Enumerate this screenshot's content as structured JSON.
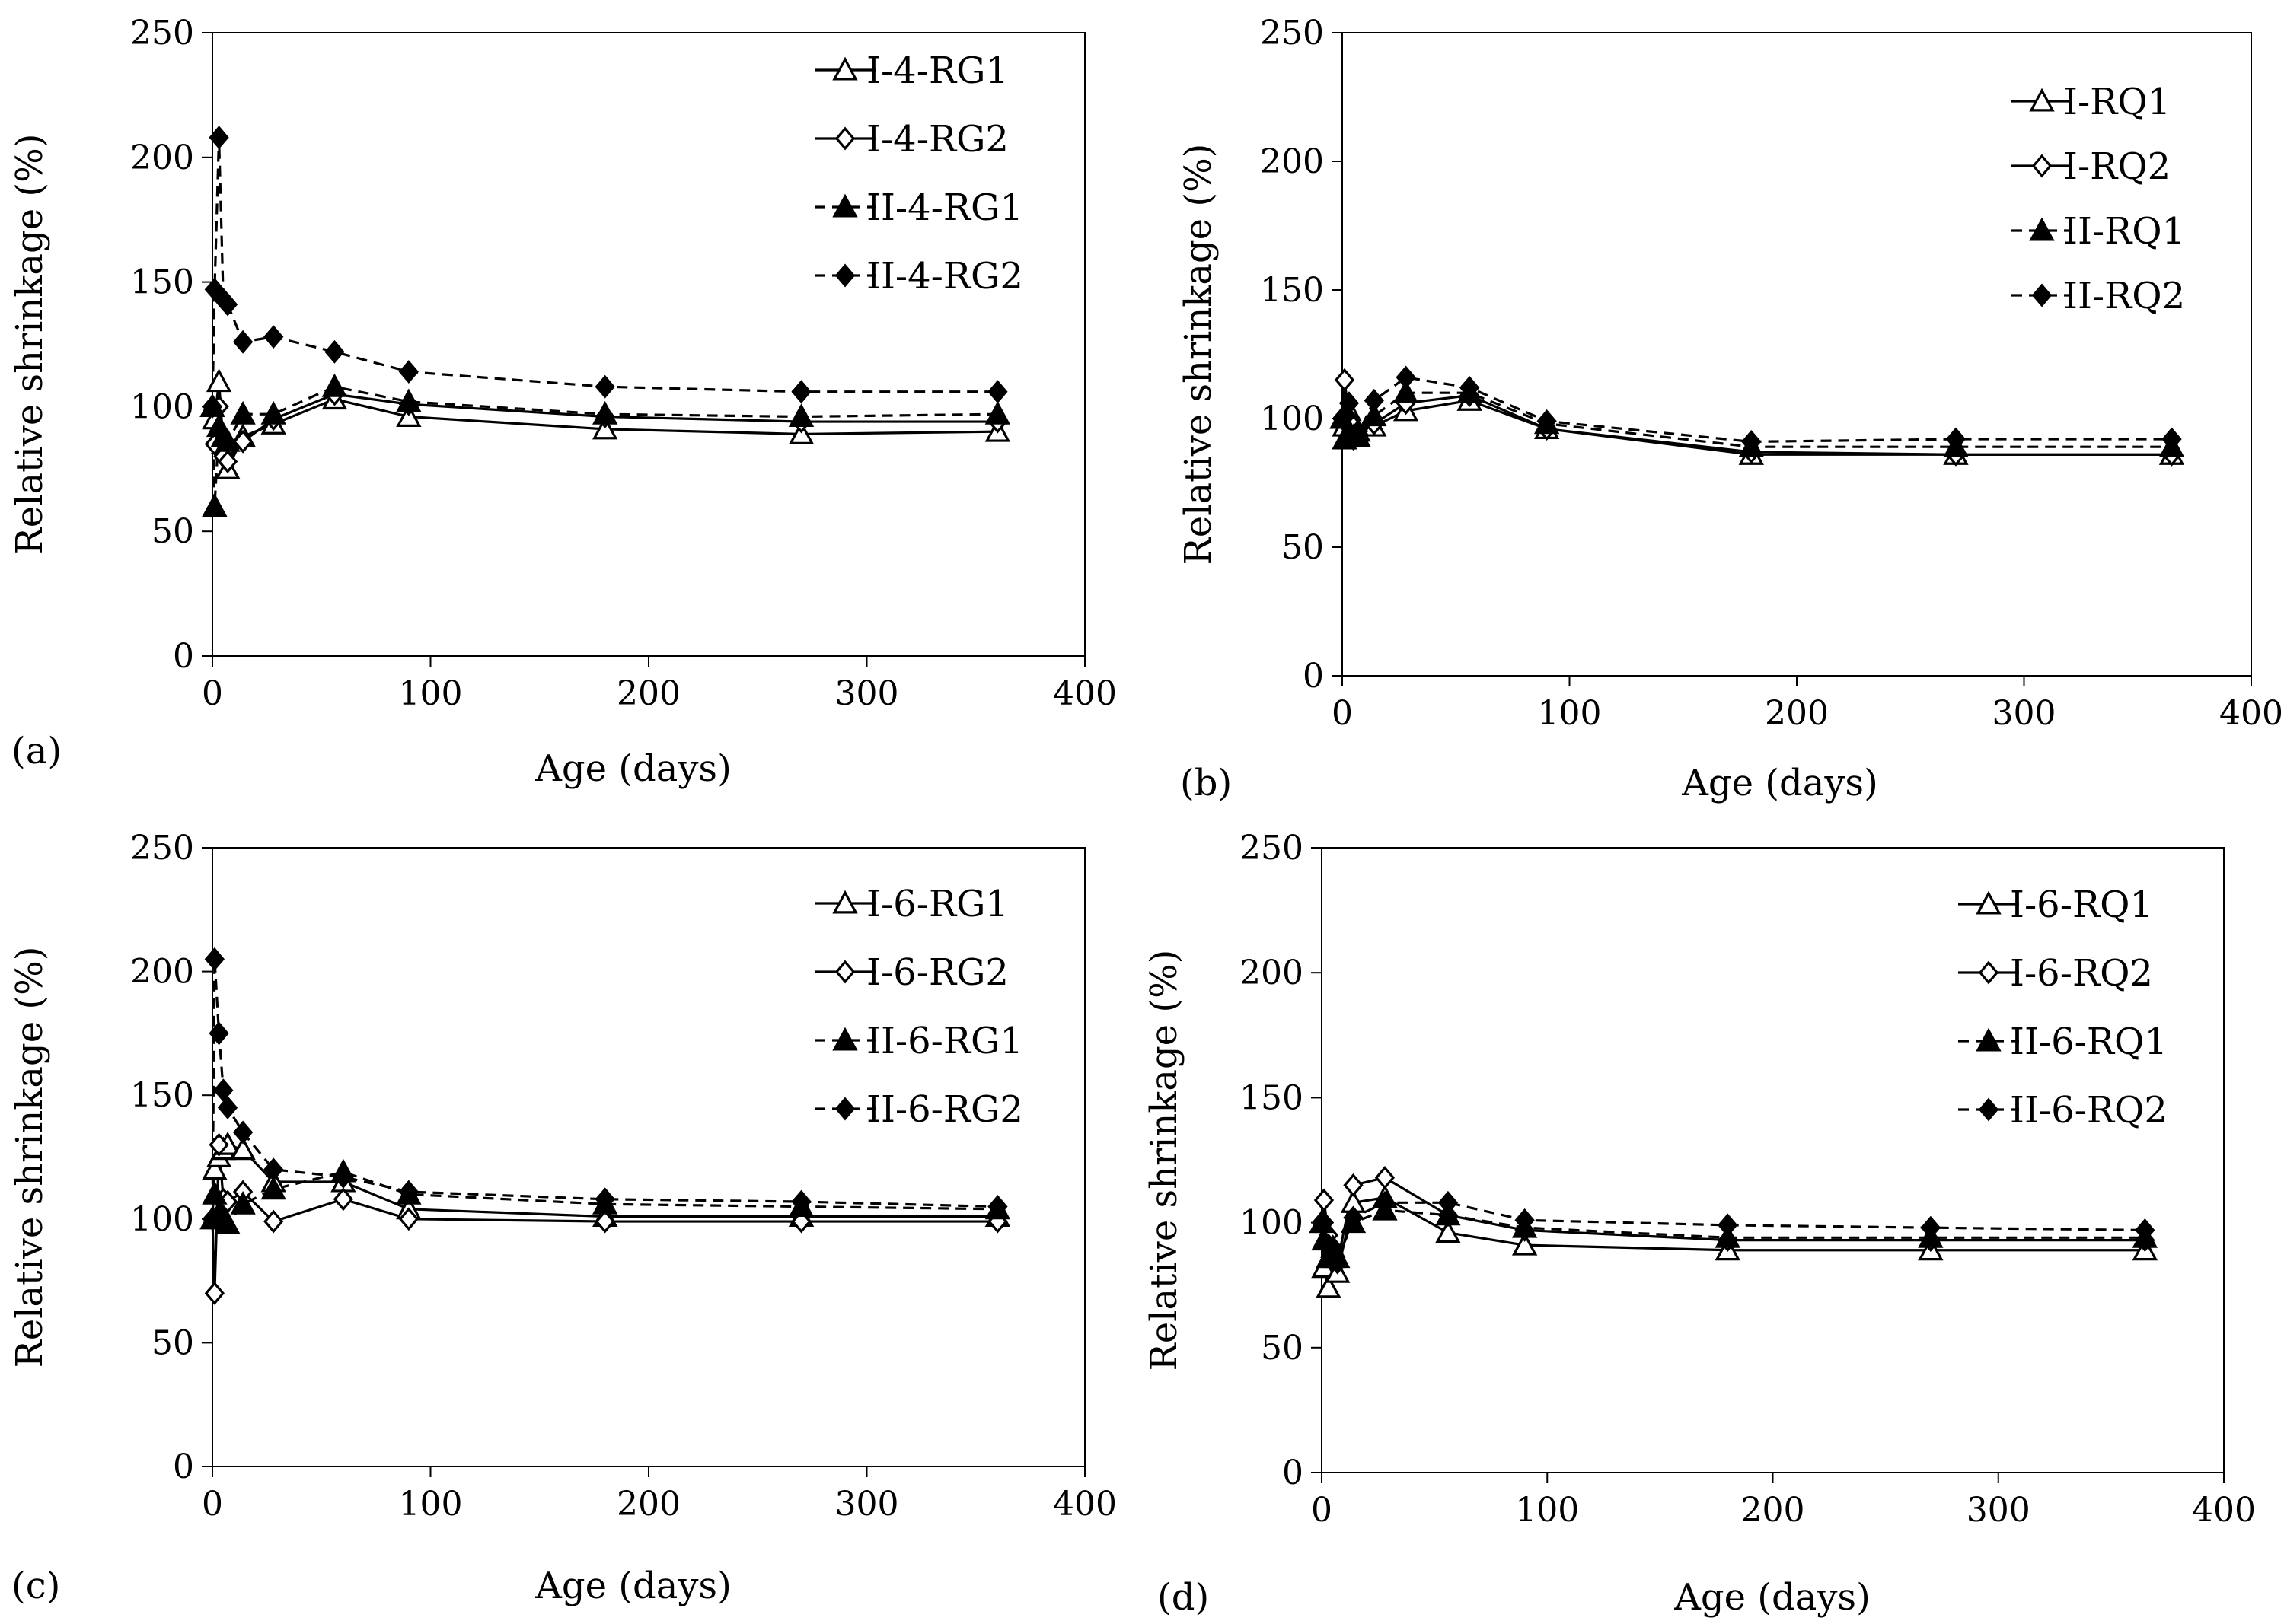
{
  "figure": {
    "panel_labels": [
      "(a)",
      "(b)",
      "(c)",
      "(d)"
    ]
  },
  "chart_data": [
    {
      "id": "a",
      "type": "line",
      "title": "",
      "xlabel": "Age (days)",
      "ylabel": "Relative shrinkage (%)",
      "xlim": [
        0,
        400
      ],
      "ylim": [
        0,
        250
      ],
      "xticks": [
        0,
        100,
        200,
        300,
        400
      ],
      "yticks": [
        0,
        50,
        100,
        150,
        200,
        250
      ],
      "grid": false,
      "legend_position": "top-right",
      "series": [
        {
          "name": "I-4-RG1",
          "marker": "triangle-open",
          "line": "solid",
          "x": [
            0,
            1,
            3,
            5,
            7,
            14,
            28,
            56,
            90,
            180,
            270,
            360
          ],
          "y": [
            100,
            95,
            110,
            85,
            75,
            88,
            93,
            103,
            96,
            91,
            89,
            90
          ]
        },
        {
          "name": "I-4-RG2",
          "marker": "diamond-open",
          "line": "solid",
          "x": [
            0,
            1,
            3,
            5,
            7,
            14,
            28,
            56,
            90,
            180,
            270,
            360
          ],
          "y": [
            100,
            85,
            100,
            80,
            78,
            86,
            95,
            105,
            101,
            96,
            94,
            94
          ]
        },
        {
          "name": "II-4-RG1",
          "marker": "triangle-filled",
          "line": "dashed",
          "x": [
            0,
            1,
            3,
            5,
            7,
            14,
            28,
            56,
            90,
            180,
            270,
            360
          ],
          "y": [
            100,
            60,
            92,
            88,
            86,
            97,
            97,
            108,
            102,
            97,
            96,
            97
          ]
        },
        {
          "name": "II-4-RG2",
          "marker": "diamond-filled",
          "line": "dashed",
          "x": [
            0,
            1,
            3,
            5,
            7,
            14,
            28,
            56,
            90,
            180,
            270,
            360
          ],
          "y": [
            100,
            147,
            208,
            143,
            141,
            126,
            128,
            122,
            114,
            108,
            106,
            106
          ]
        }
      ]
    },
    {
      "id": "b",
      "type": "line",
      "title": "",
      "xlabel": "Age (days)",
      "ylabel": "Relative shrinkage (%)",
      "xlim": [
        0,
        400
      ],
      "ylim": [
        0,
        250
      ],
      "xticks": [
        0,
        100,
        200,
        300,
        400
      ],
      "yticks": [
        0,
        50,
        100,
        150,
        200,
        250
      ],
      "grid": false,
      "legend_position": "top-right",
      "series": [
        {
          "name": "I-RQ1",
          "marker": "triangle-open",
          "line": "solid",
          "x": [
            0,
            1,
            3,
            5,
            7,
            14,
            28,
            56,
            90,
            180,
            270,
            365
          ],
          "y": [
            100,
            97,
            103,
            95,
            95,
            97,
            103,
            107,
            96,
            86,
            86,
            86
          ]
        },
        {
          "name": "I-RQ2",
          "marker": "diamond-open",
          "line": "solid",
          "x": [
            0,
            1,
            3,
            5,
            7,
            14,
            28,
            56,
            90,
            180,
            270,
            365
          ],
          "y": [
            100,
            115,
            100,
            97,
            95,
            98,
            106,
            109,
            96,
            87,
            86,
            86
          ]
        },
        {
          "name": "II-RQ1",
          "marker": "triangle-filled",
          "line": "dashed",
          "x": [
            0,
            1,
            3,
            5,
            7,
            14,
            28,
            56,
            90,
            180,
            270,
            365
          ],
          "y": [
            100,
            92,
            95,
            93,
            93,
            101,
            110,
            110,
            98,
            89,
            89,
            89
          ]
        },
        {
          "name": "II-RQ2",
          "marker": "diamond-filled",
          "line": "dashed",
          "x": [
            0,
            1,
            3,
            5,
            7,
            14,
            28,
            56,
            90,
            180,
            270,
            365
          ],
          "y": [
            100,
            101,
            106,
            92,
            94,
            107,
            116,
            112,
            99,
            91,
            92,
            92
          ]
        }
      ]
    },
    {
      "id": "c",
      "type": "line",
      "title": "",
      "xlabel": "Age (days)",
      "ylabel": "Relative shrinkage (%)",
      "xlim": [
        0,
        400
      ],
      "ylim": [
        0,
        250
      ],
      "xticks": [
        0,
        100,
        200,
        300,
        400
      ],
      "yticks": [
        0,
        50,
        100,
        150,
        200,
        250
      ],
      "grid": false,
      "legend_position": "top-right",
      "series": [
        {
          "name": "I-6-RG1",
          "marker": "triangle-open",
          "line": "solid",
          "x": [
            0,
            1,
            3,
            5,
            7,
            14,
            28,
            60,
            90,
            180,
            270,
            360
          ],
          "y": [
            100,
            120,
            125,
            128,
            130,
            128,
            115,
            115,
            104,
            101,
            101,
            101
          ]
        },
        {
          "name": "I-6-RG2",
          "marker": "diamond-open",
          "line": "solid",
          "x": [
            0,
            1,
            3,
            5,
            7,
            14,
            28,
            60,
            90,
            180,
            270,
            360
          ],
          "y": [
            100,
            70,
            130,
            108,
            107,
            111,
            99,
            108,
            100,
            99,
            99,
            99
          ]
        },
        {
          "name": "II-6-RG1",
          "marker": "triangle-filled",
          "line": "dashed",
          "x": [
            0,
            1,
            3,
            5,
            7,
            14,
            28,
            60,
            90,
            180,
            270,
            360
          ],
          "y": [
            100,
            110,
            102,
            100,
            98,
            106,
            112,
            119,
            110,
            106,
            105,
            104
          ]
        },
        {
          "name": "II-6-RG2",
          "marker": "diamond-filled",
          "line": "dashed",
          "x": [
            0,
            1,
            3,
            5,
            7,
            14,
            28,
            60,
            90,
            180,
            270,
            360
          ],
          "y": [
            100,
            205,
            175,
            152,
            145,
            135,
            120,
            117,
            111,
            108,
            107,
            105
          ]
        }
      ]
    },
    {
      "id": "d",
      "type": "line",
      "title": "",
      "xlabel": "Age (days)",
      "ylabel": "Relative shrinkage (%)",
      "xlim": [
        0,
        400
      ],
      "ylim": [
        0,
        250
      ],
      "xticks": [
        0,
        100,
        200,
        300,
        400
      ],
      "yticks": [
        0,
        50,
        100,
        150,
        200,
        250
      ],
      "grid": false,
      "legend_position": "top-right",
      "series": [
        {
          "name": "I-6-RQ1",
          "marker": "triangle-open",
          "line": "solid",
          "x": [
            0,
            1,
            3,
            5,
            7,
            14,
            28,
            56,
            90,
            180,
            270,
            365
          ],
          "y": [
            100,
            82,
            74,
            86,
            80,
            108,
            110,
            96,
            91,
            89,
            89,
            89
          ]
        },
        {
          "name": "I-6-RQ2",
          "marker": "diamond-open",
          "line": "solid",
          "x": [
            0,
            1,
            3,
            5,
            7,
            14,
            28,
            56,
            90,
            180,
            270,
            365
          ],
          "y": [
            100,
            109,
            95,
            90,
            84,
            115,
            118,
            103,
            97,
            93,
            93,
            93
          ]
        },
        {
          "name": "II-6-RQ1",
          "marker": "triangle-filled",
          "line": "dashed",
          "x": [
            0,
            1,
            3,
            5,
            7,
            14,
            28,
            56,
            90,
            180,
            270,
            365
          ],
          "y": [
            100,
            93,
            86,
            90,
            86,
            100,
            105,
            103,
            98,
            94,
            94,
            94
          ]
        },
        {
          "name": "II-6-RQ2",
          "marker": "diamond-filled",
          "line": "dashed",
          "x": [
            0,
            1,
            3,
            5,
            7,
            14,
            28,
            56,
            90,
            180,
            270,
            365
          ],
          "y": [
            100,
            100,
            91,
            88,
            84,
            102,
            108,
            108,
            101,
            99,
            98,
            97
          ]
        }
      ]
    }
  ]
}
